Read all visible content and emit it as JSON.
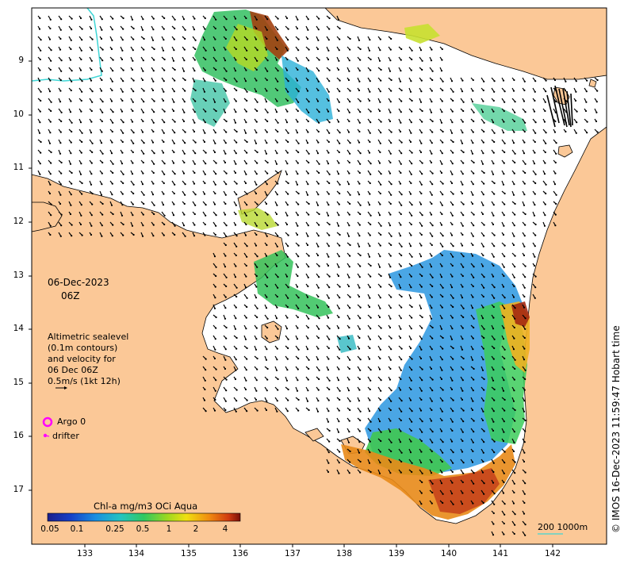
{
  "map": {
    "date": "06-Dec-2023",
    "time": "06Z",
    "legend_lines": [
      "Altimetric sealevel",
      "(0.1m contours)",
      "and velocity for",
      "06 Dec 06Z",
      "0.5m/s (1kt 12h)"
    ],
    "argo_label": "Argo 0",
    "drifter_label": "drifter",
    "scale_label": "200  1000m",
    "credit": "© IMOS 16-Dec-2023 11:59:47 Hobart time",
    "colorbar_title": "Chl-a mg/m3 OCi Aqua",
    "colorbar_ticks": [
      "0.05",
      "0.1",
      "0.25",
      "0.5",
      "1",
      "2",
      "4"
    ],
    "lat_ticks": [
      "9",
      "10",
      "11",
      "12",
      "13",
      "14",
      "15",
      "16",
      "17"
    ],
    "lon_ticks": [
      "133",
      "134",
      "135",
      "136",
      "137",
      "138",
      "139",
      "140",
      "141",
      "142"
    ],
    "colors": {
      "land": "#fbc897",
      "sea": "#ffffff",
      "argo": "#ff00ff",
      "isobath": "#3fd6d6",
      "chl_low": "#1a5fd0",
      "chl_high": "#a4230e"
    }
  }
}
